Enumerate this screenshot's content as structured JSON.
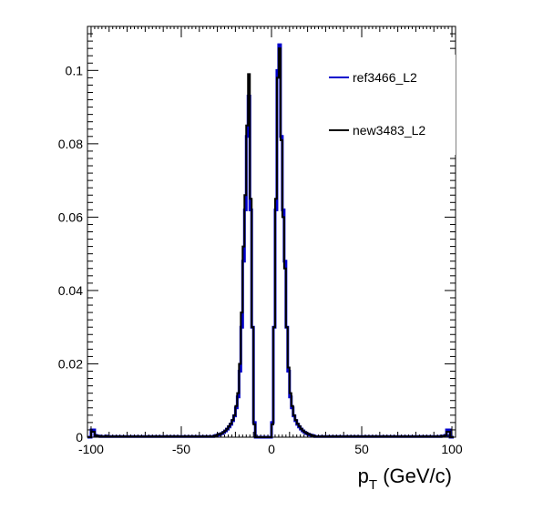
{
  "chart_data": {
    "type": "line",
    "style": "step-histogram",
    "title": "",
    "xlabel": "p",
    "xlabel_sub": "T",
    "xlabel_unit": " (GeV/c)",
    "ylabel": "",
    "xlim": [
      -102,
      102
    ],
    "ylim": [
      0,
      0.112
    ],
    "x_ticks": [
      -100,
      -50,
      0,
      50,
      100
    ],
    "x_tick_labels": [
      "-100",
      "-50",
      "0",
      "50",
      "100"
    ],
    "y_ticks": [
      0,
      0.02,
      0.04,
      0.06,
      0.08,
      0.1
    ],
    "y_tick_labels": [
      "0",
      "0.02",
      "0.04",
      "0.06",
      "0.08",
      "0.1"
    ],
    "grid": false,
    "legend_position": "top-right",
    "bin_width": 1,
    "bin_edges_start": -102,
    "series": [
      {
        "name": "ref3466_L2",
        "color": "#0000cc",
        "values": [
          0,
          0,
          0.002,
          0.002,
          0.0005,
          0.0003,
          0.0003,
          0.0002,
          0.0002,
          0.0002,
          0.0003,
          0.0002,
          0.0002,
          0.0002,
          0.0002,
          0.0002,
          0.0002,
          0.0002,
          0.0002,
          0.0002,
          0.0002,
          0.0002,
          0.0002,
          0.0002,
          0.0002,
          0.0002,
          0.0002,
          0.0002,
          0.0002,
          0.0002,
          0.0002,
          0.0002,
          0.0002,
          0.0002,
          0.0002,
          0.0002,
          0.0002,
          0.0002,
          0.0002,
          0.0002,
          0.0002,
          0.0002,
          0.0002,
          0.0002,
          0.0002,
          0.0002,
          0.0002,
          0.0002,
          0.0002,
          0.0002,
          0.0002,
          0.0002,
          0.0002,
          0.0002,
          0.0002,
          0.0002,
          0.0002,
          0.0002,
          0.0002,
          0.0002,
          0.0002,
          0.0002,
          0.0002,
          0.0002,
          0.0002,
          0.0002,
          0.0002,
          0.0002,
          0.0002,
          0.0002,
          0.0003,
          0.0005,
          0.0006,
          0.0008,
          0.001,
          0.0013,
          0.0017,
          0.0022,
          0.0028,
          0.0035,
          0.0045,
          0.0058,
          0.008,
          0.011,
          0.018,
          0.03,
          0.048,
          0.062,
          0.082,
          0.093,
          0.062,
          0.03,
          0.004,
          0,
          0,
          0,
          0,
          0,
          0,
          0,
          0,
          0,
          0.004,
          0.03,
          0.062,
          0.1,
          0.107,
          0.082,
          0.062,
          0.048,
          0.03,
          0.018,
          0.011,
          0.008,
          0.0058,
          0.0045,
          0.0035,
          0.0028,
          0.0022,
          0.0017,
          0.0013,
          0.001,
          0.0008,
          0.0006,
          0.0005,
          0.0003,
          0.0002,
          0.0002,
          0.0002,
          0.0002,
          0.0002,
          0.0002,
          0.0002,
          0.0002,
          0.0002,
          0.0002,
          0.0002,
          0.0002,
          0.0002,
          0.0002,
          0.0002,
          0.0002,
          0.0002,
          0.0002,
          0.0002,
          0.0002,
          0.0002,
          0.0002,
          0.0002,
          0.0002,
          0.0002,
          0.0002,
          0.0002,
          0.0002,
          0.0002,
          0.0002,
          0.0002,
          0.0002,
          0.0002,
          0.0002,
          0.0002,
          0.0002,
          0.0002,
          0.0002,
          0.0002,
          0.0002,
          0.0002,
          0.0002,
          0.0002,
          0.0002,
          0.0002,
          0.0002,
          0.0002,
          0.0002,
          0.0002,
          0.0002,
          0.0002,
          0.0002,
          0.0002,
          0.0002,
          0.0002,
          0.0002,
          0.0002,
          0.0002,
          0.0002,
          0.0002,
          0.0002,
          0.0002,
          0.0002,
          0.0002,
          0.0002,
          0.0002,
          0.0002,
          0.0002,
          0.0002,
          0.0002,
          0.0003,
          0.0003,
          0.0005,
          0.002,
          0.002,
          0,
          0
        ]
      },
      {
        "name": "new3483_L2",
        "color": "#000000",
        "values": [
          0,
          0,
          0.0015,
          0.0015,
          0.0005,
          0.0003,
          0.0003,
          0.0002,
          0.0002,
          0.0002,
          0.0003,
          0.0002,
          0.0002,
          0.0002,
          0.0002,
          0.0002,
          0.0002,
          0.0002,
          0.0002,
          0.0002,
          0.0002,
          0.0002,
          0.0002,
          0.0002,
          0.0002,
          0.0002,
          0.0002,
          0.0002,
          0.0002,
          0.0002,
          0.0002,
          0.0002,
          0.0002,
          0.0002,
          0.0002,
          0.0002,
          0.0002,
          0.0002,
          0.0002,
          0.0002,
          0.0002,
          0.0002,
          0.0002,
          0.0002,
          0.0002,
          0.0002,
          0.0002,
          0.0002,
          0.0002,
          0.0002,
          0.0002,
          0.0002,
          0.0002,
          0.0002,
          0.0002,
          0.0002,
          0.0002,
          0.0002,
          0.0002,
          0.0002,
          0.0002,
          0.0002,
          0.0002,
          0.0002,
          0.0002,
          0.0002,
          0.0002,
          0.0002,
          0.0002,
          0.0002,
          0.0003,
          0.0005,
          0.0007,
          0.0009,
          0.0011,
          0.0014,
          0.0018,
          0.0023,
          0.003,
          0.0037,
          0.0047,
          0.006,
          0.0085,
          0.012,
          0.02,
          0.034,
          0.052,
          0.066,
          0.085,
          0.099,
          0.065,
          0.03,
          0.0035,
          0,
          0,
          0,
          0,
          0,
          0,
          0,
          0,
          0,
          0.0035,
          0.03,
          0.065,
          0.098,
          0.106,
          0.081,
          0.06,
          0.046,
          0.03,
          0.019,
          0.012,
          0.0085,
          0.006,
          0.0047,
          0.0037,
          0.003,
          0.0023,
          0.0018,
          0.0014,
          0.0011,
          0.0009,
          0.0007,
          0.0005,
          0.0003,
          0.0002,
          0.0002,
          0.0002,
          0.0002,
          0.0002,
          0.0002,
          0.0002,
          0.0002,
          0.0002,
          0.0002,
          0.0002,
          0.0002,
          0.0002,
          0.0002,
          0.0002,
          0.0002,
          0.0002,
          0.0002,
          0.0002,
          0.0002,
          0.0002,
          0.0002,
          0.0002,
          0.0002,
          0.0002,
          0.0002,
          0.0002,
          0.0002,
          0.0002,
          0.0002,
          0.0002,
          0.0002,
          0.0002,
          0.0002,
          0.0002,
          0.0002,
          0.0002,
          0.0002,
          0.0002,
          0.0002,
          0.0002,
          0.0002,
          0.0002,
          0.0002,
          0.0002,
          0.0002,
          0.0002,
          0.0002,
          0.0002,
          0.0002,
          0.0002,
          0.0002,
          0.0002,
          0.0002,
          0.0002,
          0.0002,
          0.0002,
          0.0002,
          0.0002,
          0.0002,
          0.0002,
          0.0002,
          0.0002,
          0.0002,
          0.0002,
          0.0002,
          0.0002,
          0.0002,
          0.0002,
          0.0002,
          0.0003,
          0.0003,
          0.0005,
          0.0015,
          0.0015,
          0,
          0
        ]
      }
    ]
  }
}
